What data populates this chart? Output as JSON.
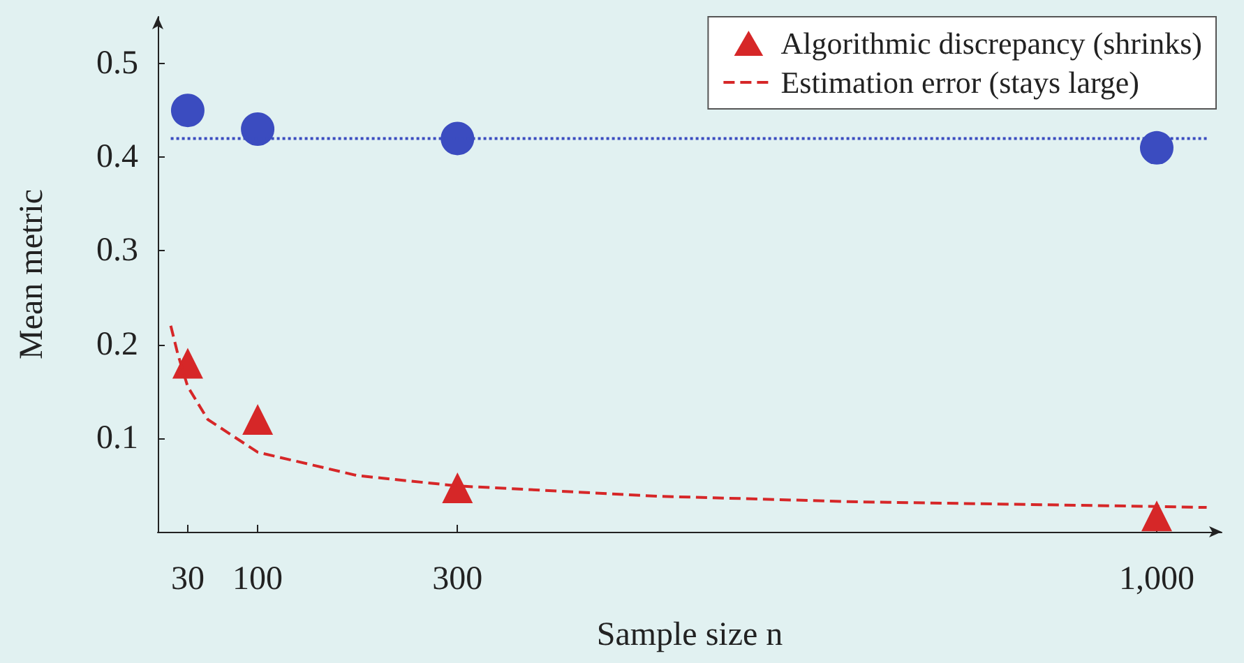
{
  "chart_data": {
    "type": "scatter",
    "xlabel": "Sample size n",
    "ylabel": "Mean metric",
    "xlim": [
      0,
      1065
    ],
    "xticks": [
      30,
      100,
      300,
      {
        "value": 1000,
        "label": "1,000"
      }
    ],
    "ylim": [
      0,
      0.55
    ],
    "yticks": [
      0.1,
      0.2,
      0.3,
      0.4,
      0.5
    ],
    "grid": false,
    "legend": "top right",
    "series": [
      {
        "marker": "circle",
        "color": "#3b4cc0",
        "x": [
          30,
          100,
          300,
          1000
        ],
        "values": [
          0.45,
          0.43,
          0.42,
          0.41
        ]
      },
      {
        "type": "line",
        "marker": "none",
        "line_style": "dotted",
        "color": "#3b4cc0",
        "x": [
          13,
          1050
        ],
        "values": [
          0.42,
          0.42
        ]
      },
      {
        "name": "Algorithmic discrepancy (shrinks)",
        "marker": "triangle",
        "color": "#d62728",
        "x": [
          30,
          100,
          300,
          1000
        ],
        "values": [
          0.18,
          0.12,
          0.047,
          0.017
        ]
      },
      {
        "type": "line",
        "name": "Estimation error (stays large)",
        "marker": "none",
        "line_style": "dashed",
        "color": "#d62728",
        "x": [
          13,
          20,
          30,
          50,
          100,
          200,
          300,
          500,
          700,
          1000,
          1050
        ],
        "values": [
          0.22,
          0.19,
          0.155,
          0.12,
          0.085,
          0.06,
          0.049,
          0.038,
          0.032,
          0.027,
          0.026
        ]
      }
    ]
  }
}
